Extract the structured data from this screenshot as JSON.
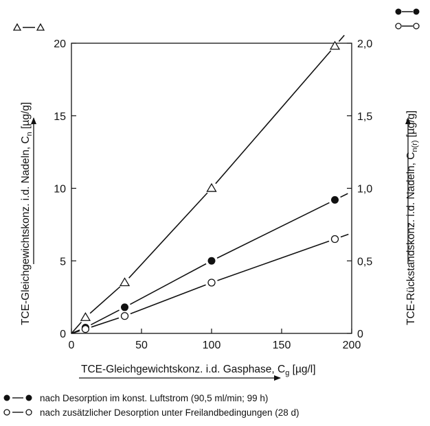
{
  "chart_data": {
    "type": "scatter",
    "x": [
      0,
      10,
      38,
      100,
      188
    ],
    "xlim": [
      0,
      200
    ],
    "x_ticks": [
      "0",
      "50",
      "100",
      "150",
      "200"
    ],
    "xlabel": "TCE-Gleichgewichtskonz. i.d. Gasphase, C",
    "xlabel_sub": "g",
    "xlabel_unit": " [µg/l]",
    "left_axis": {
      "ylim": [
        0,
        20
      ],
      "ticks": [
        "0",
        "5",
        "10",
        "15",
        "20"
      ],
      "label": "TCE-Gleichgewichtskonz. i.d. Nadeln, C",
      "label_sub": "n",
      "label_unit": " [µg/g]"
    },
    "right_axis": {
      "ylim": [
        0,
        2.0
      ],
      "ticks": [
        "0",
        "0,5",
        "1,0",
        "1,5",
        "2,0"
      ],
      "label": "TCE-Rückstandskonz. i.d. Nadeln, C",
      "label_sub": "n(r)",
      "label_unit": " [µg/g]"
    },
    "series": [
      {
        "axis": "left",
        "marker": "open-triangle",
        "key_symbol": "Δ—Δ",
        "x": [
          0,
          10,
          38,
          100,
          188
        ],
        "values": [
          0,
          1.1,
          3.5,
          10.0,
          19.8
        ]
      },
      {
        "axis": "right",
        "marker": "filled-circle",
        "key_symbol": "●—●",
        "name": "nach Desorption im konst. Luftstrom (90,5 ml/min; 99 h)",
        "x": [
          0,
          10,
          38,
          100,
          188
        ],
        "values": [
          0,
          0.04,
          0.18,
          0.5,
          0.92
        ]
      },
      {
        "axis": "right",
        "marker": "open-circle",
        "key_symbol": "○—○",
        "name": "nach zusätzlicher Desorption unter Freilandbedingungen (28 d)",
        "x": [
          0,
          10,
          38,
          100,
          188
        ],
        "values": [
          0,
          0.03,
          0.12,
          0.35,
          0.65
        ]
      }
    ],
    "grid": false,
    "legend_position": "bottom"
  },
  "legend": {
    "items": [
      "nach Desorption im konst. Luftstrom (90,5 ml/min; 99 h)",
      "nach zusätzlicher Desorption unter Freilandbedingungen (28 d)"
    ]
  }
}
